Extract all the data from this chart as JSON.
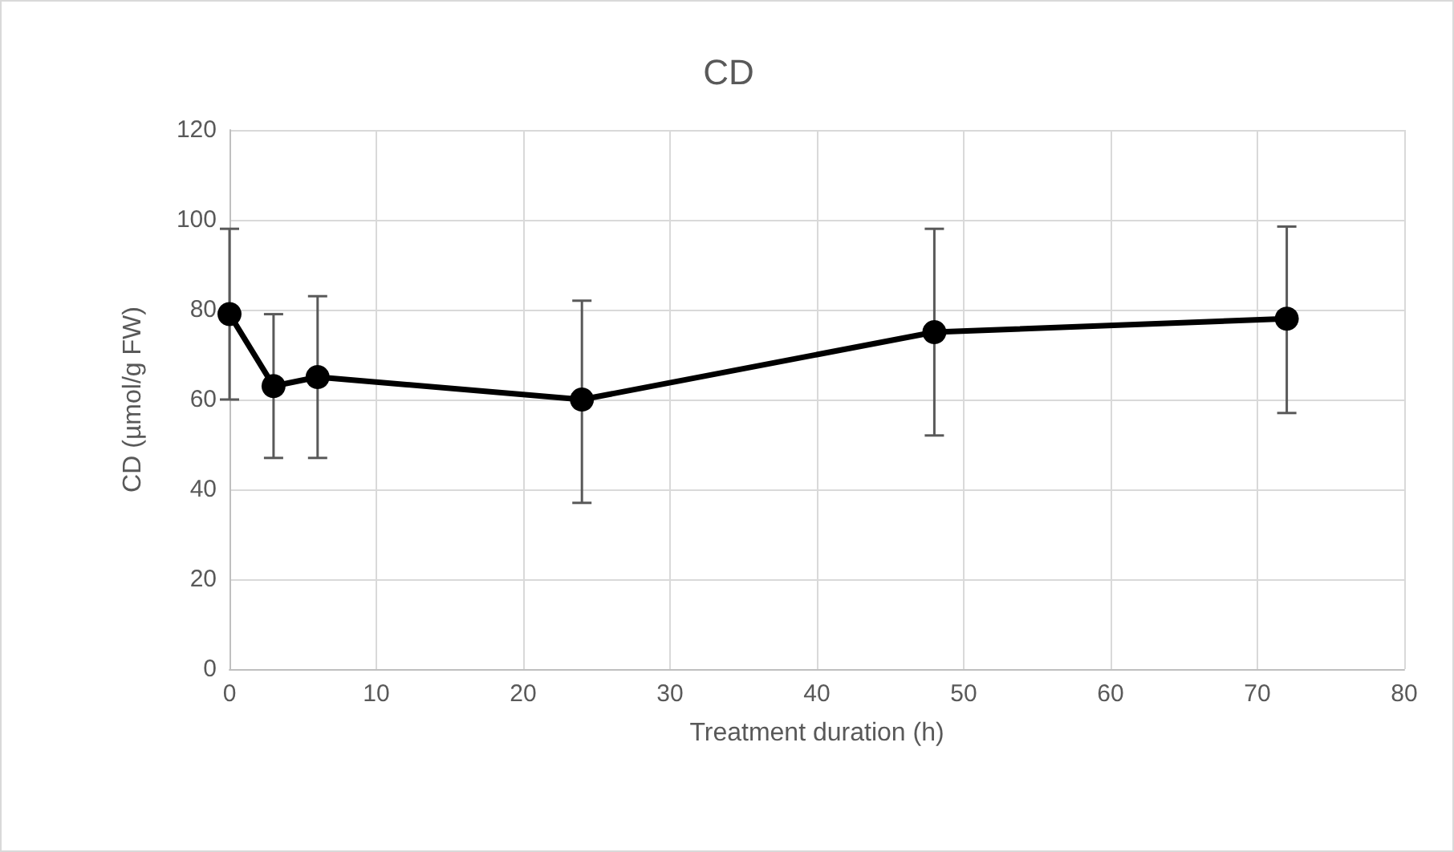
{
  "chart_data": {
    "type": "line",
    "title": "CD",
    "xlabel": "Treatment duration (h)",
    "ylabel": "CD (µmol/g FW)",
    "x": [
      0,
      3,
      6,
      24,
      48,
      72
    ],
    "series": [
      {
        "color": "#000000",
        "values": [
          79,
          63,
          65,
          60,
          75,
          78
        ],
        "errors": [
          [
            60,
            98
          ],
          [
            47,
            79
          ],
          [
            47,
            83
          ],
          [
            37,
            82
          ],
          [
            52,
            98
          ],
          [
            57,
            98.5
          ]
        ]
      }
    ],
    "xlim": [
      0,
      80
    ],
    "xticks": [
      0,
      10,
      20,
      30,
      40,
      50,
      60,
      70,
      80
    ],
    "ylim": [
      0,
      120
    ],
    "yticks": [
      0,
      20,
      40,
      60,
      80,
      100,
      120
    ],
    "grid": true,
    "marker": "circle",
    "line_style": "solid"
  }
}
